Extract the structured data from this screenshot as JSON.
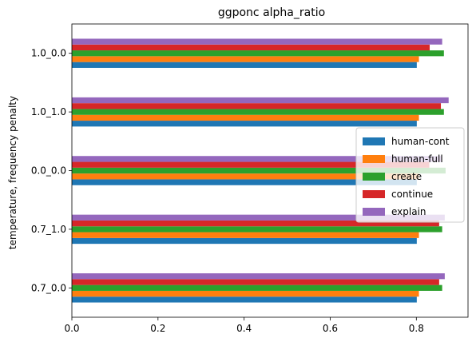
{
  "chart_data": {
    "type": "bar",
    "orientation": "horizontal",
    "title": "ggponc alpha_ratio",
    "xlabel": "",
    "ylabel": "temperature, frequency penalty",
    "categories": [
      "0.7_0.0",
      "0.7_1.0",
      "0.0_0.0",
      "1.0_1.0",
      "1.0_0.0"
    ],
    "xlim": [
      0.0,
      0.92
    ],
    "xticks": [
      0.0,
      0.2,
      0.4,
      0.6,
      0.8
    ],
    "xtick_labels": [
      "0.0",
      "0.2",
      "0.4",
      "0.6",
      "0.8"
    ],
    "grid": false,
    "legend_position": "center-right",
    "series": [
      {
        "name": "human-cont",
        "color": "#1f77b4",
        "values": [
          0.801,
          0.801,
          0.801,
          0.801,
          0.801
        ]
      },
      {
        "name": "human-full",
        "color": "#ff7f0e",
        "values": [
          0.806,
          0.806,
          0.806,
          0.806,
          0.806
        ]
      },
      {
        "name": "create",
        "color": "#2ca02c",
        "values": [
          0.86,
          0.86,
          0.868,
          0.864,
          0.864
        ]
      },
      {
        "name": "continue",
        "color": "#d62728",
        "values": [
          0.853,
          0.853,
          0.83,
          0.857,
          0.831
        ]
      },
      {
        "name": "explain",
        "color": "#9467bd",
        "values": [
          0.866,
          0.866,
          0.858,
          0.875,
          0.86
        ]
      }
    ]
  }
}
